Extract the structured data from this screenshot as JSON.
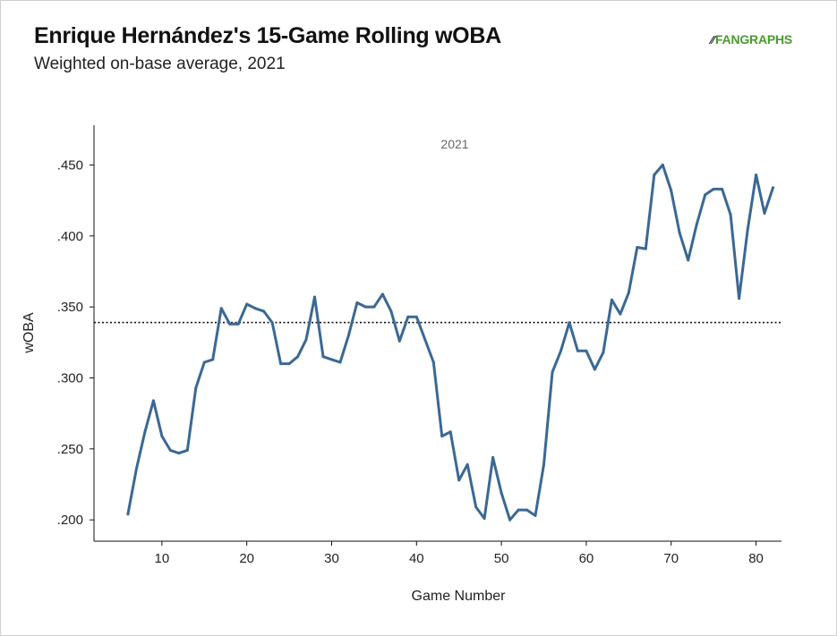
{
  "title": "Enrique Hernández's 15-Game Rolling wOBA",
  "subtitle": "Weighted on-base average, 2021",
  "logo": {
    "mark": "⁄⁄",
    "text": "FANGRAPHS"
  },
  "chart_data": {
    "type": "line",
    "panel_label": "2021",
    "xlabel": "Game Number",
    "ylabel": "wOBA",
    "xlim": [
      2,
      83
    ],
    "ylim": [
      0.185,
      0.478
    ],
    "x_ticks": [
      10,
      20,
      30,
      40,
      50,
      60,
      70,
      80
    ],
    "y_ticks": [
      0.2,
      0.25,
      0.3,
      0.35,
      0.4,
      0.45
    ],
    "y_tick_labels": [
      ".200",
      ".250",
      ".300",
      ".350",
      ".400",
      ".450"
    ],
    "reference_line": {
      "y": 0.339,
      "style": "dotted"
    },
    "series": [
      {
        "color": "#3a6895",
        "x": [
          6,
          7,
          8,
          9,
          10,
          11,
          12,
          13,
          14,
          15,
          16,
          17,
          18,
          19,
          20,
          21,
          22,
          23,
          24,
          25,
          26,
          27,
          28,
          29,
          30,
          31,
          32,
          33,
          34,
          35,
          36,
          37,
          38,
          39,
          40,
          41,
          42,
          43,
          44,
          45,
          46,
          47,
          48,
          49,
          50,
          51,
          52,
          53,
          54,
          55,
          56,
          57,
          58,
          59,
          60,
          61,
          62,
          63,
          64,
          65,
          66,
          67,
          68,
          69,
          70,
          71,
          72,
          73,
          74,
          75,
          76,
          77,
          78,
          79,
          80,
          81,
          82
        ],
        "y": [
          0.204,
          0.236,
          0.262,
          0.284,
          0.259,
          0.249,
          0.247,
          0.249,
          0.293,
          0.311,
          0.313,
          0.349,
          0.338,
          0.338,
          0.352,
          0.349,
          0.347,
          0.339,
          0.31,
          0.31,
          0.315,
          0.327,
          0.357,
          0.315,
          0.313,
          0.311,
          0.33,
          0.353,
          0.35,
          0.35,
          0.359,
          0.347,
          0.326,
          0.343,
          0.343,
          0.327,
          0.311,
          0.259,
          0.262,
          0.228,
          0.239,
          0.209,
          0.201,
          0.244,
          0.219,
          0.2,
          0.207,
          0.207,
          0.203,
          0.239,
          0.304,
          0.319,
          0.339,
          0.319,
          0.319,
          0.306,
          0.318,
          0.355,
          0.345,
          0.36,
          0.392,
          0.391,
          0.443,
          0.45,
          0.432,
          0.402,
          0.383,
          0.408,
          0.429,
          0.433,
          0.433,
          0.415,
          0.356,
          0.404,
          0.443,
          0.416,
          0.434
        ]
      }
    ]
  }
}
